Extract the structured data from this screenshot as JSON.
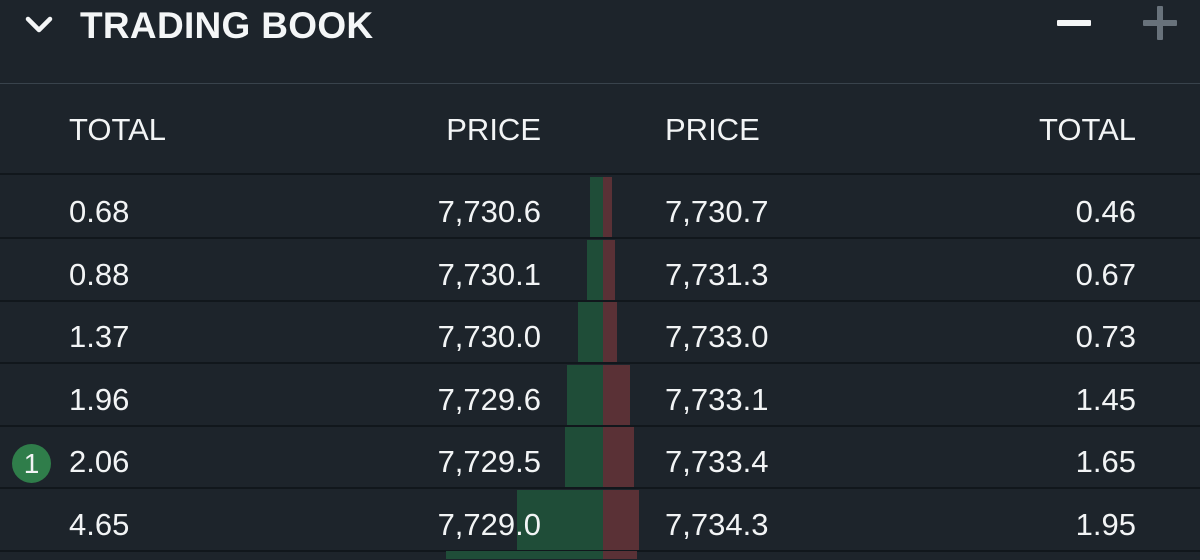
{
  "header": {
    "title": "TRADING BOOK",
    "collapse_icon": "chevron-down-icon",
    "minus_icon": "minus-icon",
    "plus_icon": "plus-icon"
  },
  "columns": {
    "bid_total": "TOTAL",
    "bid_price": "PRICE",
    "ask_price": "PRICE",
    "ask_total": "TOTAL"
  },
  "colors": {
    "background": "#1d242b",
    "bid_depth": "#1f4d38",
    "ask_depth": "#5a3136",
    "badge": "#2f7d4a"
  },
  "rows": [
    {
      "bid_total": "0.68",
      "bid_price": "7,730.6",
      "ask_price": "7,730.7",
      "ask_total": "0.46",
      "bid_depth": 0.68,
      "ask_depth": 0.46
    },
    {
      "bid_total": "0.88",
      "bid_price": "7,730.1",
      "ask_price": "7,731.3",
      "ask_total": "0.67",
      "bid_depth": 0.88,
      "ask_depth": 0.67
    },
    {
      "bid_total": "1.37",
      "bid_price": "7,730.0",
      "ask_price": "7,733.0",
      "ask_total": "0.73",
      "bid_depth": 1.37,
      "ask_depth": 0.73
    },
    {
      "bid_total": "1.96",
      "bid_price": "7,729.6",
      "ask_price": "7,733.1",
      "ask_total": "1.45",
      "bid_depth": 1.96,
      "ask_depth": 1.45
    },
    {
      "bid_total": "2.06",
      "bid_price": "7,729.5",
      "ask_price": "7,733.4",
      "ask_total": "1.65",
      "bid_depth": 2.06,
      "ask_depth": 1.65,
      "badge": "1"
    },
    {
      "bid_total": "4.65",
      "bid_price": "7,729.0",
      "ask_price": "7,734.3",
      "ask_total": "1.95",
      "bid_depth": 4.65,
      "ask_depth": 1.95
    }
  ]
}
